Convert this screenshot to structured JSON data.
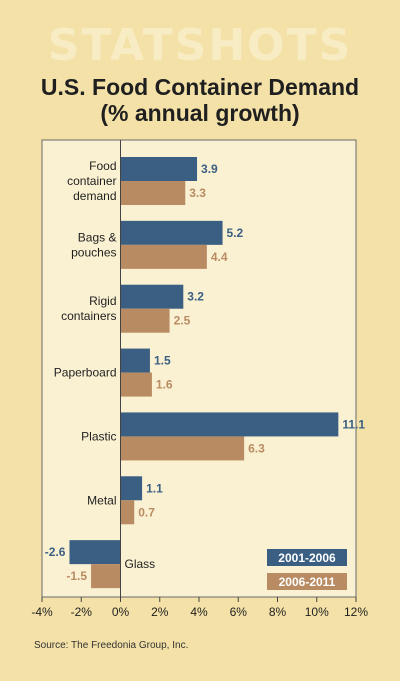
{
  "header": {
    "brand": "STATSHOTS"
  },
  "chart_data": {
    "type": "bar",
    "orientation": "horizontal",
    "title": "U.S. Food Container Demand",
    "subtitle": "(% annual growth)",
    "categories": [
      [
        "Food",
        "container",
        "demand"
      ],
      [
        "Bags &",
        "pouches"
      ],
      [
        "Rigid",
        "containers"
      ],
      [
        "Paperboard"
      ],
      [
        "Plastic"
      ],
      [
        "Metal"
      ],
      [
        "Glass"
      ]
    ],
    "series": [
      {
        "name": "2001-2006",
        "color": "#3a5f82",
        "values": [
          3.9,
          5.2,
          3.2,
          1.5,
          11.1,
          1.1,
          -2.6
        ]
      },
      {
        "name": "2006-2011",
        "color": "#b98b63",
        "values": [
          3.3,
          4.4,
          2.5,
          1.6,
          6.3,
          0.7,
          -1.5
        ]
      }
    ],
    "value_labels": [
      [
        "3.9",
        "5.2",
        "3.2",
        "1.5",
        "11.1",
        "1.1",
        "-2.6"
      ],
      [
        "3.3",
        "4.4",
        "2.5",
        "1.6",
        "6.3",
        "0.7",
        "-1.5"
      ]
    ],
    "xlim": [
      -4,
      12
    ],
    "xticks": [
      -4,
      -2,
      0,
      2,
      4,
      6,
      8,
      10,
      12
    ],
    "xtick_labels": [
      "-4%",
      "-2%",
      "0%",
      "2%",
      "4%",
      "6%",
      "8%",
      "10%",
      "12%"
    ],
    "grid": false,
    "legend_position": "bottom-right",
    "source": "Source: The Freedonia Group, Inc."
  }
}
